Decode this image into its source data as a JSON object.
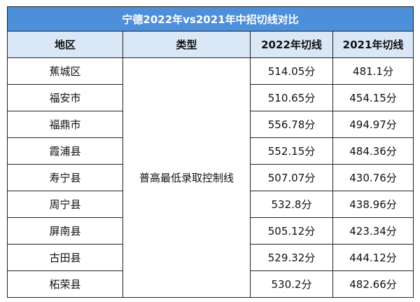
{
  "table": {
    "title": "宁德2022年vs2021年中招切线对比",
    "header": [
      "地区",
      "类型",
      "2022年切线",
      "2021年切线"
    ],
    "type_cell": "普高最低录取控制线",
    "rows": [
      [
        "蕉城区",
        "514.05分",
        "481.1分"
      ],
      [
        "福安市",
        "510.65分",
        "454.15分"
      ],
      [
        "福鼎市",
        "556.78分",
        "494.97分"
      ],
      [
        "霞浦县",
        "552.15分",
        "484.36分"
      ],
      [
        "寿宁县",
        "507.07分",
        "430.76分"
      ],
      [
        "周宁县",
        "532.8分",
        "438.96分"
      ],
      [
        "屏南县",
        "505.12分",
        "423.34分"
      ],
      [
        "古田县",
        "529.32分",
        "444.12分"
      ],
      [
        "柘荣县",
        "530.2分",
        "482.66分"
      ]
    ]
  }
}
